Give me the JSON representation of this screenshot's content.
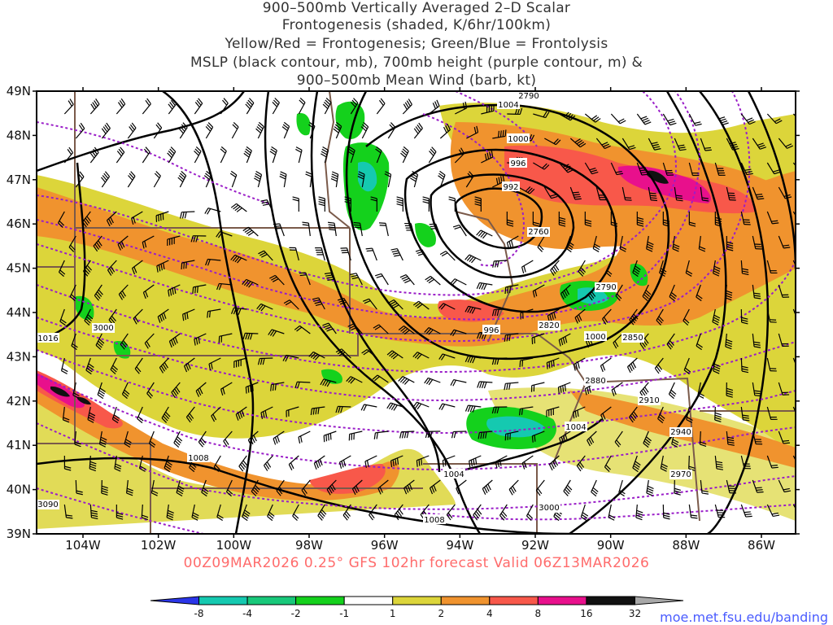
{
  "title_lines": [
    "900–500mb Vertically Averaged 2–D Scalar",
    "Frontogenesis (shaded, K/6hr/100km)",
    "Yellow/Red = Frontogenesis;  Green/Blue = Frontolysis",
    "MSLP (black contour, mb), 700mb height (purple contour, m) &",
    "900–500mb Mean Wind (barb, kt)"
  ],
  "lat_labels": [
    "49N",
    "48N",
    "47N",
    "46N",
    "45N",
    "44N",
    "43N",
    "42N",
    "41N",
    "40N",
    "39N"
  ],
  "lon_labels": [
    "104W",
    "102W",
    "100W",
    "98W",
    "96W",
    "94W",
    "92W",
    "90W",
    "88W",
    "86W"
  ],
  "valid_text": "00Z09MAR2026 0.25° GFS 102hr forecast Valid 06Z13MAR2026",
  "credit": "moe.met.fsu.edu/banding",
  "colorbar": {
    "ticks": [
      "-8",
      "-4",
      "-2",
      "-1",
      "1",
      "2",
      "4",
      "8",
      "16",
      "32"
    ],
    "colors": [
      "#2a35e8",
      "#15c9b0",
      "#18c87a",
      "#14d11c",
      "#ffffff",
      "#dcd53a",
      "#f0932e",
      "#f8584a",
      "#e8108c",
      "#111111",
      "#a8a8a8"
    ]
  },
  "mslp_labels": [
    "1004",
    "1000",
    "996",
    "992",
    "996",
    "1000",
    "1004",
    "1004",
    "1008",
    "1016",
    "1008"
  ],
  "height_labels": [
    "2790",
    "2760",
    "2790",
    "2820",
    "2850",
    "2880",
    "2910",
    "2940",
    "2970",
    "3000",
    "3000",
    "3090"
  ],
  "colors": {
    "frontogenesis_yellow": "#dcd53a",
    "frontogenesis_orange": "#f0932e",
    "frontogenesis_red": "#f8584a",
    "frontogenesis_magenta": "#e8108c",
    "frontolysis_green": "#14d11c",
    "frontolysis_teal": "#15c9b0",
    "mslp_contour": "#000000",
    "height_contour": "#9a1ec8",
    "borders": "#7a5a4a"
  }
}
